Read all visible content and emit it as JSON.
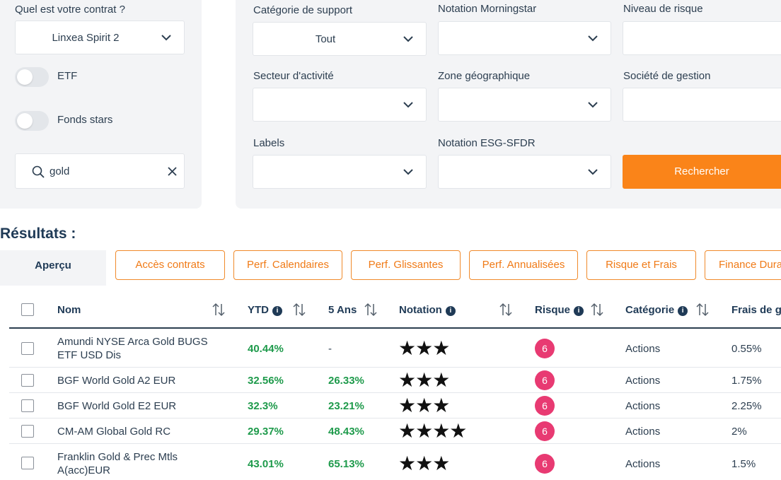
{
  "filters": {
    "contract": {
      "label": "Quel est votre contrat ?",
      "value": "Linxea Spirit 2"
    },
    "etf_toggle": {
      "label": "ETF"
    },
    "stars_toggle": {
      "label": "Fonds stars"
    },
    "search": {
      "value": "gold",
      "icon": "search-icon",
      "clear_icon": "close-icon"
    },
    "categorie": {
      "label": "Catégorie de support",
      "value": "Tout"
    },
    "morningstar": {
      "label": "Notation Morningstar",
      "value": ""
    },
    "risque": {
      "label": "Niveau de risque",
      "value": ""
    },
    "secteur": {
      "label": "Secteur d'activité",
      "value": ""
    },
    "zone": {
      "label": "Zone géographique",
      "value": ""
    },
    "societe": {
      "label": "Société de gestion",
      "value": ""
    },
    "labels": {
      "label": "Labels",
      "value": ""
    },
    "esg": {
      "label": "Notation ESG-SFDR",
      "value": ""
    },
    "search_button": "Rechercher"
  },
  "results": {
    "title": "Résultats :",
    "tabs": [
      "Aperçu",
      "Accès contrats",
      "Perf. Calendaires",
      "Perf. Glissantes",
      "Perf. Annualisées",
      "Risque et Frais",
      "Finance Dura"
    ],
    "columns": [
      "Nom",
      "YTD",
      "5 Ans",
      "Notation",
      "Risque",
      "Catégorie",
      "Frais de ge"
    ],
    "rows": [
      {
        "name1": "Amundi NYSE Arca Gold BUGS",
        "name2": "ETF USD Dis",
        "ytd": "40.44%",
        "five": "-",
        "stars": "★★★",
        "risk": "6",
        "cat": "Actions",
        "fees": "0.55%"
      },
      {
        "name1": "BGF World Gold A2 EUR",
        "name2": "",
        "ytd": "32.56%",
        "five": "26.33%",
        "stars": "★★★",
        "risk": "6",
        "cat": "Actions",
        "fees": "1.75%"
      },
      {
        "name1": "BGF World Gold E2 EUR",
        "name2": "",
        "ytd": "32.3%",
        "five": "23.21%",
        "stars": "★★★",
        "risk": "6",
        "cat": "Actions",
        "fees": "2.25%"
      },
      {
        "name1": "CM-AM Global Gold RC",
        "name2": "",
        "ytd": "29.37%",
        "five": "48.43%",
        "stars": "★★★★",
        "risk": "6",
        "cat": "Actions",
        "fees": "2%"
      },
      {
        "name1": "Franklin Gold & Prec Mtls",
        "name2": "A(acc)EUR",
        "ytd": "43.01%",
        "five": "65.13%",
        "stars": "★★★",
        "risk": "6",
        "cat": "Actions",
        "fees": "1.5%"
      }
    ]
  },
  "colors": {
    "accent": "#fa8419",
    "positive": "#1e9a4b",
    "risk_badge": "#e83a72",
    "text": "#2c3e50"
  }
}
